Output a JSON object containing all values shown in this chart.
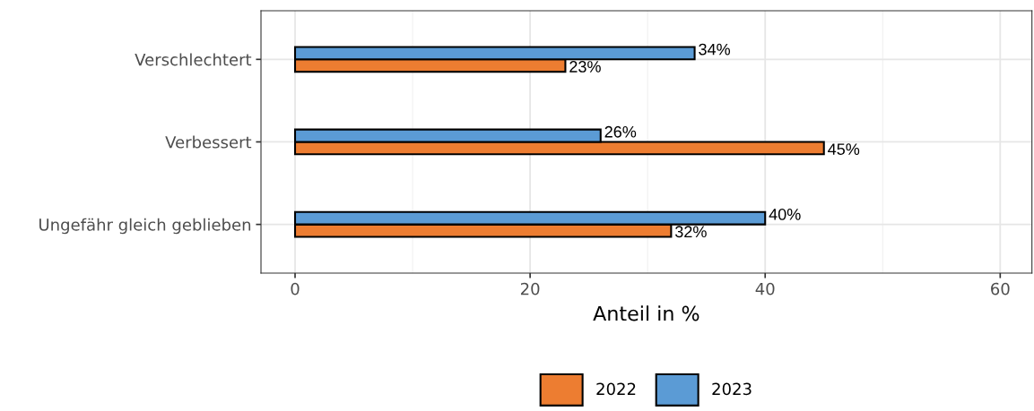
{
  "chart_data": {
    "type": "bar",
    "orientation": "horizontal",
    "xlabel": "Anteil in %",
    "categories": [
      "Verschlechtert",
      "Verbessert",
      "Ungefähr gleich geblieben"
    ],
    "series": [
      {
        "name": "2022",
        "color": "#ed7d31",
        "values": [
          23,
          45,
          32
        ],
        "value_labels": [
          "23%",
          "45%",
          "32%"
        ]
      },
      {
        "name": "2023",
        "color": "#5b9bd5",
        "values": [
          34,
          26,
          40
        ],
        "value_labels": [
          "34%",
          "26%",
          "40%"
        ]
      }
    ],
    "xlim": [
      -2.9,
      62.7
    ],
    "xticks": [
      0,
      20,
      40,
      60
    ],
    "grid": true,
    "legend": "bottom"
  }
}
